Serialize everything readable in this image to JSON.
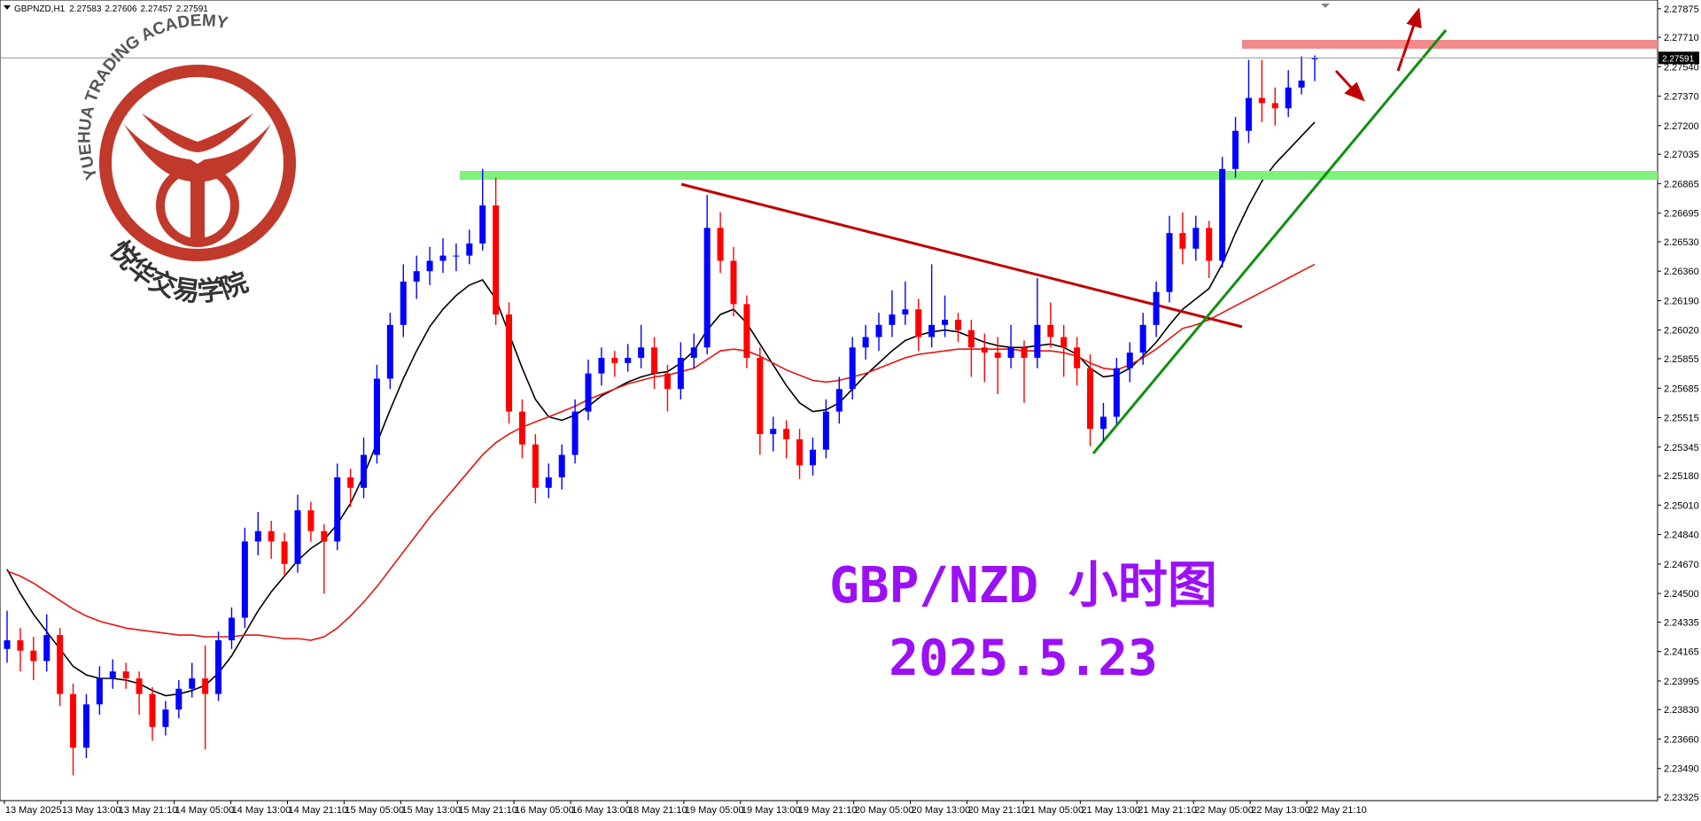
{
  "chart_data": {
    "type": "candlestick",
    "symbol": "GBPNZD,H1",
    "up_color": "#0000ff",
    "down_color": "#ff0000",
    "candles": [
      [
        2.2418,
        2.244,
        2.241,
        2.2423
      ],
      [
        2.2423,
        2.243,
        2.2405,
        2.2417
      ],
      [
        2.2417,
        2.2425,
        2.24,
        2.2411
      ],
      [
        2.2411,
        2.2438,
        2.2405,
        2.2426
      ],
      [
        2.2426,
        2.243,
        2.2385,
        2.2392
      ],
      [
        2.2392,
        2.2398,
        2.2345,
        2.2361
      ],
      [
        2.2361,
        2.2392,
        2.2355,
        2.2386
      ],
      [
        2.2386,
        2.2408,
        2.238,
        2.2401
      ],
      [
        2.2401,
        2.2412,
        2.2395,
        2.2405
      ],
      [
        2.2405,
        2.241,
        2.2395,
        2.2401
      ],
      [
        2.2401,
        2.2405,
        2.238,
        2.2392
      ],
      [
        2.2392,
        2.2396,
        2.2365,
        2.2373
      ],
      [
        2.2373,
        2.2388,
        2.2368,
        2.2383
      ],
      [
        2.2383,
        2.24,
        2.2378,
        2.2395
      ],
      [
        2.2395,
        2.241,
        2.239,
        2.2401
      ],
      [
        2.2401,
        2.242,
        2.236,
        2.2392
      ],
      [
        2.2392,
        2.2428,
        2.2388,
        2.2423
      ],
      [
        2.2423,
        2.2442,
        2.2418,
        2.2436
      ],
      [
        2.2436,
        2.2488,
        2.243,
        2.248
      ],
      [
        2.248,
        2.2497,
        2.2472,
        2.2486
      ],
      [
        2.2486,
        2.2492,
        2.247,
        2.248
      ],
      [
        2.248,
        2.2485,
        2.246,
        2.2467
      ],
      [
        2.2467,
        2.2507,
        2.2462,
        2.2498
      ],
      [
        2.2498,
        2.2503,
        2.248,
        2.2486
      ],
      [
        2.2486,
        2.249,
        2.245,
        2.248
      ],
      [
        2.248,
        2.2525,
        2.2475,
        2.2517
      ],
      [
        2.2517,
        2.2522,
        2.25,
        2.2511
      ],
      [
        2.2511,
        2.254,
        2.2505,
        2.253
      ],
      [
        2.253,
        2.2582,
        2.2525,
        2.2574
      ],
      [
        2.2574,
        2.2612,
        2.2568,
        2.2605
      ],
      [
        2.2605,
        2.264,
        2.2598,
        2.263
      ],
      [
        2.263,
        2.2645,
        2.262,
        2.2636
      ],
      [
        2.2636,
        2.265,
        2.2628,
        2.2642
      ],
      [
        2.2642,
        2.2655,
        2.2635,
        2.2645
      ],
      [
        2.2645,
        2.2652,
        2.2636,
        2.2645
      ],
      [
        2.2645,
        2.266,
        2.264,
        2.2652
      ],
      [
        2.2652,
        2.2695,
        2.2648,
        2.2674
      ],
      [
        2.2674,
        2.269,
        2.2605,
        2.2611
      ],
      [
        2.2611,
        2.2618,
        2.2548,
        2.2555
      ],
      [
        2.2555,
        2.2562,
        2.2528,
        2.2536
      ],
      [
        2.2536,
        2.2542,
        2.2502,
        2.2511
      ],
      [
        2.2511,
        2.2525,
        2.2505,
        2.2517
      ],
      [
        2.2517,
        2.2536,
        2.251,
        2.253
      ],
      [
        2.253,
        2.2562,
        2.2525,
        2.2555
      ],
      [
        2.2555,
        2.2585,
        2.255,
        2.2577
      ],
      [
        2.2577,
        2.2592,
        2.257,
        2.2586
      ],
      [
        2.2586,
        2.259,
        2.2575,
        2.2583
      ],
      [
        2.2583,
        2.2594,
        2.2578,
        2.2586
      ],
      [
        2.2586,
        2.2605,
        2.258,
        2.2592
      ],
      [
        2.2592,
        2.2598,
        2.2568,
        2.2577
      ],
      [
        2.2577,
        2.2582,
        2.2555,
        2.2568
      ],
      [
        2.2568,
        2.2595,
        2.2562,
        2.2586
      ],
      [
        2.2586,
        2.26,
        2.258,
        2.2592
      ],
      [
        2.2592,
        2.268,
        2.2588,
        2.2661
      ],
      [
        2.2661,
        2.267,
        2.2635,
        2.2642
      ],
      [
        2.2642,
        2.265,
        2.261,
        2.2617
      ],
      [
        2.2617,
        2.2622,
        2.258,
        2.2586
      ],
      [
        2.2586,
        2.2592,
        2.253,
        2.2542
      ],
      [
        2.2542,
        2.2552,
        2.2532,
        2.2545
      ],
      [
        2.2545,
        2.255,
        2.2528,
        2.2539
      ],
      [
        2.2539,
        2.2545,
        2.2516,
        2.2524
      ],
      [
        2.2524,
        2.254,
        2.2518,
        2.2533
      ],
      [
        2.2533,
        2.2562,
        2.2528,
        2.2555
      ],
      [
        2.2555,
        2.2575,
        2.2548,
        2.2568
      ],
      [
        2.2568,
        2.2598,
        2.2562,
        2.2592
      ],
      [
        2.2592,
        2.2605,
        2.2585,
        2.2598
      ],
      [
        2.2598,
        2.2612,
        2.259,
        2.2605
      ],
      [
        2.2605,
        2.2625,
        2.2598,
        2.2611
      ],
      [
        2.2611,
        2.263,
        2.2605,
        2.2614
      ],
      [
        2.2614,
        2.262,
        2.259,
        2.2598
      ],
      [
        2.2598,
        2.264,
        2.2592,
        2.2605
      ],
      [
        2.2605,
        2.2622,
        2.2598,
        2.2608
      ],
      [
        2.2608,
        2.2612,
        2.2595,
        2.2602
      ],
      [
        2.2602,
        2.2608,
        2.2575,
        2.2592
      ],
      [
        2.2592,
        2.26,
        2.2572,
        2.2589
      ],
      [
        2.2589,
        2.2598,
        2.2565,
        2.2586
      ],
      [
        2.2586,
        2.2605,
        2.258,
        2.2592
      ],
      [
        2.2592,
        2.2596,
        2.256,
        2.2586
      ],
      [
        2.2586,
        2.2632,
        2.258,
        2.2605
      ],
      [
        2.2605,
        2.2618,
        2.2592,
        2.2598
      ],
      [
        2.2598,
        2.2605,
        2.2575,
        2.2592
      ],
      [
        2.2592,
        2.2598,
        2.257,
        2.258
      ],
      [
        2.258,
        2.2588,
        2.2535,
        2.2545
      ],
      [
        2.2545,
        2.256,
        2.2538,
        2.2552
      ],
      [
        2.2552,
        2.2586,
        2.2548,
        2.258
      ],
      [
        2.258,
        2.2595,
        2.2572,
        2.2589
      ],
      [
        2.2589,
        2.2612,
        2.2582,
        2.2605
      ],
      [
        2.2605,
        2.263,
        2.2598,
        2.2624
      ],
      [
        2.2624,
        2.2668,
        2.2618,
        2.2658
      ],
      [
        2.2658,
        2.267,
        2.264,
        2.2649
      ],
      [
        2.2649,
        2.2668,
        2.2642,
        2.2661
      ],
      [
        2.2661,
        2.2665,
        2.2632,
        2.2642
      ],
      [
        2.2642,
        2.2702,
        2.2638,
        2.2695
      ],
      [
        2.2695,
        2.2725,
        2.269,
        2.2717
      ],
      [
        2.2717,
        2.2758,
        2.271,
        2.2736
      ],
      [
        2.2736,
        2.2758,
        2.2722,
        2.2733
      ],
      [
        2.2733,
        2.2742,
        2.272,
        2.273
      ],
      [
        2.273,
        2.2752,
        2.2725,
        2.2742
      ],
      [
        2.2742,
        2.276,
        2.2738,
        2.2746
      ],
      [
        2.27583,
        2.27606,
        2.27457,
        2.27591
      ]
    ],
    "moving_averages": [
      {
        "color": "#000000",
        "values": [
          2.2464,
          2.245,
          2.2438,
          2.2428,
          2.2418,
          2.2408,
          2.2403,
          2.2401,
          2.2401,
          2.24,
          2.2398,
          2.2394,
          2.2391,
          2.2392,
          2.2394,
          2.2397,
          2.2404,
          2.2414,
          2.2427,
          2.244,
          2.2451,
          2.246,
          2.2469,
          2.2476,
          2.2481,
          2.249,
          2.2502,
          2.2518,
          2.2537,
          2.2556,
          2.2574,
          2.259,
          2.2604,
          2.2614,
          2.2622,
          2.2628,
          2.2631,
          2.262,
          2.26,
          2.258,
          2.2562,
          2.2552,
          2.255,
          2.2553,
          2.2558,
          2.2564,
          2.2568,
          2.2572,
          2.2575,
          2.2577,
          2.2578,
          2.2583,
          2.259,
          2.2602,
          2.2611,
          2.2614,
          2.2606,
          2.2594,
          2.2582,
          2.257,
          2.256,
          2.2555,
          2.2556,
          2.256,
          2.2568,
          2.2576,
          2.2583,
          2.259,
          2.2596,
          2.2599,
          2.2601,
          2.2602,
          2.2601,
          2.2598,
          2.2595,
          2.2593,
          2.2592,
          2.2592,
          2.2593,
          2.2594,
          2.2592,
          2.2588,
          2.258,
          2.2575,
          2.2576,
          2.258,
          2.2587,
          2.2595,
          2.2605,
          2.2614,
          2.262,
          2.2626,
          2.264,
          2.2658,
          2.2674,
          2.2688,
          2.2698,
          2.2706,
          2.2714,
          2.2722
        ]
      },
      {
        "color": "#e8140f",
        "values": [
          2.2463,
          2.246,
          2.2456,
          2.2451,
          2.2446,
          2.2441,
          2.2437,
          2.2434,
          2.2432,
          2.243,
          2.2429,
          2.2428,
          2.2427,
          2.2426,
          2.2426,
          2.2425,
          2.2425,
          2.2425,
          2.2426,
          2.2426,
          2.2425,
          2.2424,
          2.2424,
          2.2423,
          2.2425,
          2.243,
          2.2437,
          2.2445,
          2.2454,
          2.2464,
          2.2474,
          2.2484,
          2.2494,
          2.2503,
          2.2512,
          2.2521,
          2.253,
          2.2537,
          2.2542,
          2.2546,
          2.2549,
          2.2552,
          2.2555,
          2.2558,
          2.2562,
          2.2565,
          2.2568,
          2.2571,
          2.2573,
          2.2575,
          2.2576,
          2.2578,
          2.258,
          2.2585,
          2.259,
          2.2591,
          2.259,
          2.2587,
          2.2583,
          2.2579,
          2.2576,
          2.2573,
          2.2572,
          2.2573,
          2.2575,
          2.2577,
          2.258,
          2.2583,
          2.2586,
          2.2588,
          2.2589,
          2.259,
          2.2591,
          2.2591,
          2.2591,
          2.2591,
          2.2591,
          2.259,
          2.259,
          2.259,
          2.2589,
          2.2587,
          2.2583,
          2.258,
          2.2579,
          2.2582,
          2.2586,
          2.2591,
          2.2597,
          2.2603,
          2.2605,
          2.2608,
          2.2612,
          2.2616,
          2.262,
          2.2624,
          2.2628,
          2.2632,
          2.2636,
          2.264
        ]
      }
    ],
    "x_labels": [
      "13 May 2025",
      "13 May 13:00",
      "13 May 21:10",
      "14 May 05:00",
      "14 May 13:00",
      "14 May 21:10",
      "15 May 05:00",
      "15 May 13:00",
      "15 May 21:10",
      "16 May 05:00",
      "16 May 13:00",
      "18 May 21:10",
      "19 May 05:00",
      "19 May 13:00",
      "19 May 21:10",
      "20 May 05:00",
      "20 May 13:00",
      "20 May 21:10",
      "21 May 05:00",
      "21 May 13:00",
      "21 May 21:10",
      "22 May 05:00",
      "22 May 13:00",
      "22 May 21:10"
    ],
    "ylim": [
      2.23325,
      2.27875
    ],
    "yticks": [
      2.27875,
      {
        "value": 2.2771,
        "label": "2.27710"
      },
      {
        "value": 2.2754,
        "label": "2.27540"
      },
      {
        "value": 2.2737,
        "label": "2.27370"
      },
      {
        "value": 2.272,
        "label": "2.27200"
      },
      2.27035,
      2.26865,
      2.26695,
      {
        "value": 2.2653,
        "label": "2.26530"
      },
      {
        "value": 2.2636,
        "label": "2.26360"
      },
      {
        "value": 2.2619,
        "label": "2.26190"
      },
      {
        "value": 2.2602,
        "label": "2.26020"
      },
      2.25855,
      2.25685,
      2.25515,
      2.25345,
      {
        "value": 2.2518,
        "label": "2.25180"
      },
      {
        "value": 2.2501,
        "label": "2.25010"
      },
      {
        "value": 2.2484,
        "label": "2.24840"
      },
      {
        "value": 2.2467,
        "label": "2.24670"
      },
      {
        "value": 2.245,
        "label": "2.24500"
      },
      2.24335,
      2.24165,
      2.23995,
      {
        "value": 2.2383,
        "label": "2.23830"
      },
      {
        "value": 2.2366,
        "label": "2.23660"
      },
      {
        "value": 2.2349,
        "label": "2.23490"
      },
      2.23325
    ],
    "annotations": [
      "GBP/NZD 小时图",
      "2025.5.23"
    ]
  },
  "logo": {
    "name_en": "YUEHUA TRADING ACADEMY",
    "name_cn": "悦华交易学院"
  }
}
